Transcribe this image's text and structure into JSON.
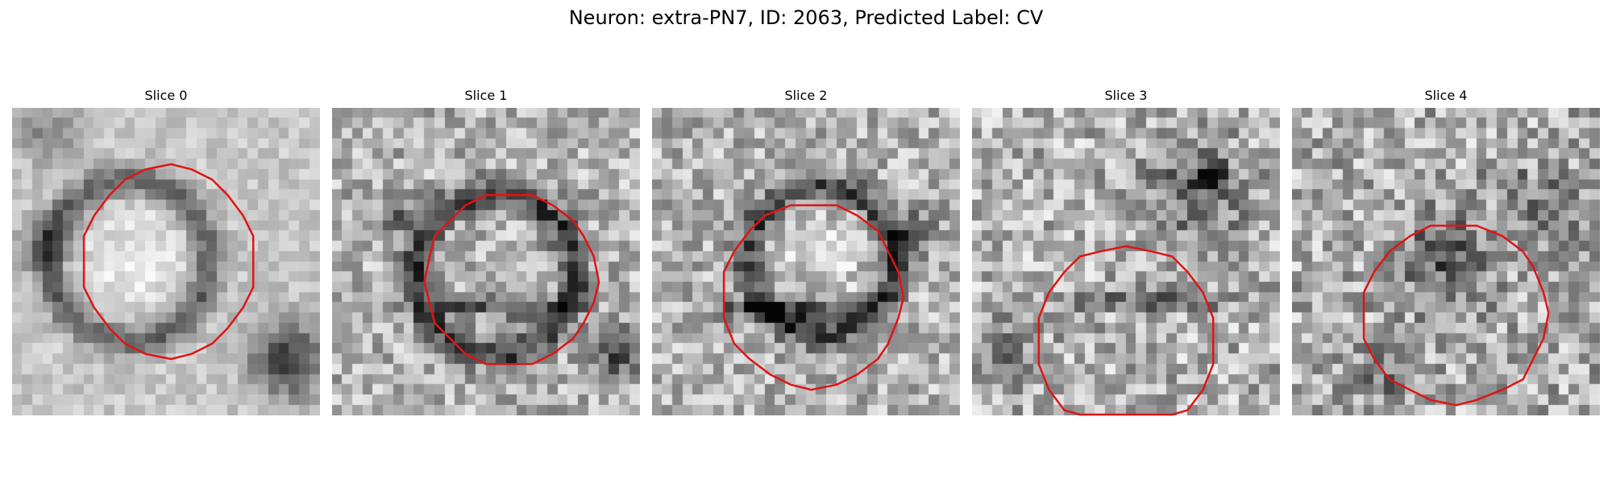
{
  "figure": {
    "title": "Neuron: extra-PN7, ID: 2063, Predicted Label: CV"
  },
  "colors": {
    "contour": "#e01414",
    "background": "#ffffff"
  },
  "slices": [
    {
      "title": "Slice 0"
    },
    {
      "title": "Slice 1"
    },
    {
      "title": "Slice 2"
    },
    {
      "title": "Slice 3"
    },
    {
      "title": "Slice 4"
    }
  ]
}
